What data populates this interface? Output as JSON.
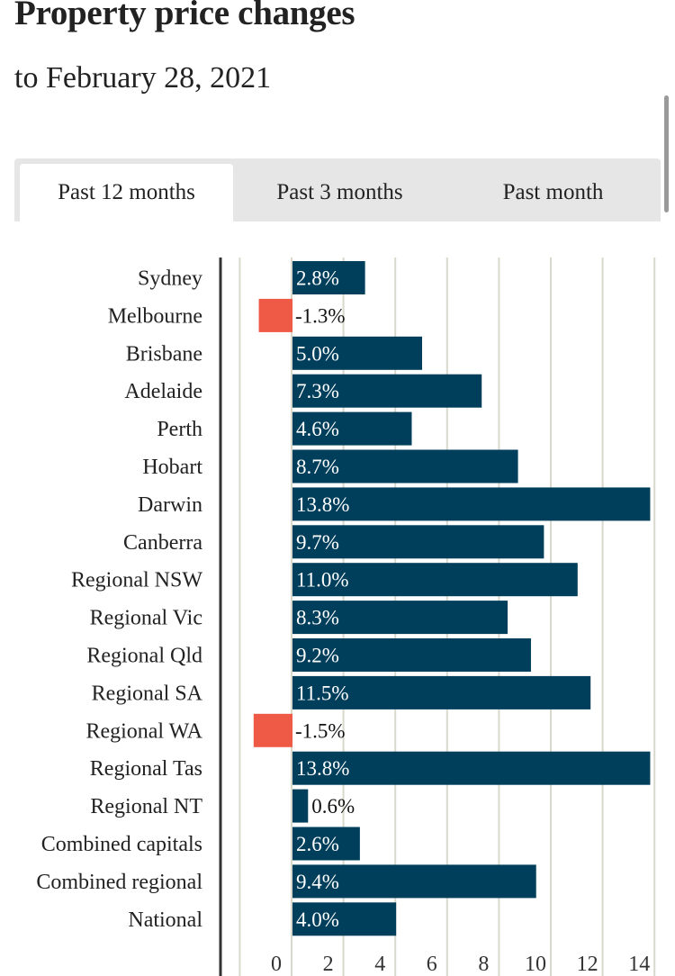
{
  "header": {
    "title": "Property price changes",
    "subtitle": "to February 28, 2021"
  },
  "tabs": [
    {
      "label": "Past 12 months",
      "active": true
    },
    {
      "label": "Past 3 months",
      "active": false
    },
    {
      "label": "Past month",
      "active": false
    }
  ],
  "colors": {
    "positive": "#003f5c",
    "negative": "#ee5a45",
    "grid": "#d8d8cc",
    "axis": "#333333"
  },
  "chart_data": {
    "type": "bar",
    "orientation": "horizontal",
    "categories": [
      "Sydney",
      "Melbourne",
      "Brisbane",
      "Adelaide",
      "Perth",
      "Hobart",
      "Darwin",
      "Canberra",
      "Regional NSW",
      "Regional Vic",
      "Regional Qld",
      "Regional SA",
      "Regional WA",
      "Regional Tas",
      "Regional NT",
      "Combined capitals",
      "Combined regional",
      "National"
    ],
    "values": [
      2.8,
      -1.3,
      5.0,
      7.3,
      4.6,
      8.7,
      13.8,
      9.7,
      11.0,
      8.3,
      9.2,
      11.5,
      -1.5,
      13.8,
      0.6,
      2.6,
      9.4,
      4.0
    ],
    "value_labels": [
      "2.8%",
      "-1.3%",
      "5.0%",
      "7.3%",
      "4.6%",
      "8.7%",
      "13.8%",
      "9.7%",
      "11.0%",
      "8.3%",
      "9.2%",
      "11.5%",
      "-1.5%",
      "13.8%",
      "0.6%",
      "2.6%",
      "9.4%",
      "4.0%"
    ],
    "x_ticks": [
      0,
      2,
      4,
      6,
      8,
      10,
      12,
      14
    ],
    "xlim": [
      -2,
      14
    ],
    "grid": true,
    "title": "",
    "xlabel": "",
    "ylabel": ""
  }
}
